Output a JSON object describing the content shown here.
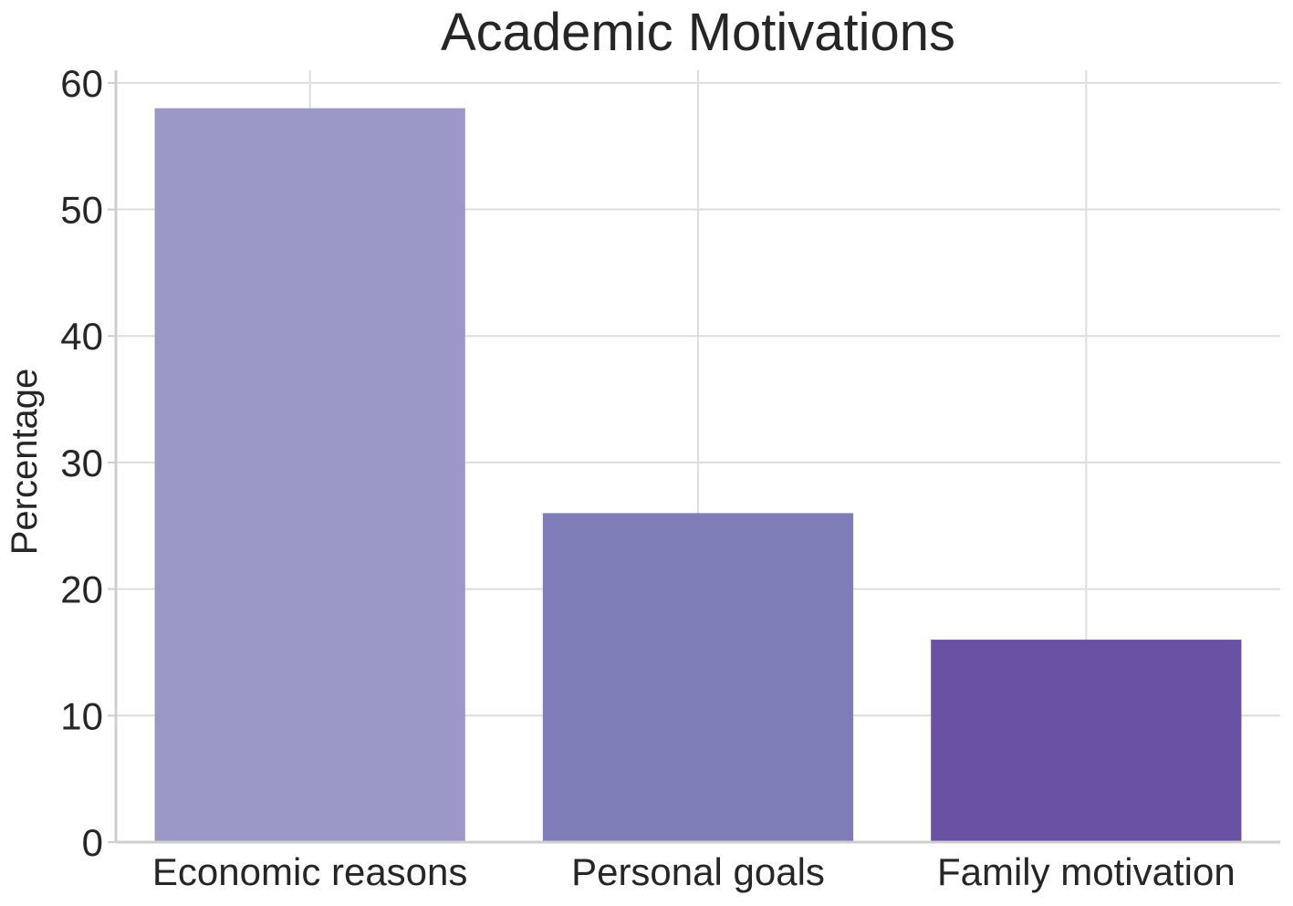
{
  "chart_data": {
    "type": "bar",
    "title": "Academic Motivations",
    "xlabel": "",
    "ylabel": "Percentage",
    "categories": [
      "Economic reasons",
      "Personal goals",
      "Family motivation"
    ],
    "values": [
      58,
      26,
      16
    ],
    "colors": [
      "#9b98c7",
      "#7f7db7",
      "#6a51a3"
    ],
    "ylim": [
      0,
      61
    ],
    "yticks": [
      0,
      10,
      20,
      30,
      40,
      50,
      60
    ],
    "grid": true,
    "legend": "none"
  }
}
